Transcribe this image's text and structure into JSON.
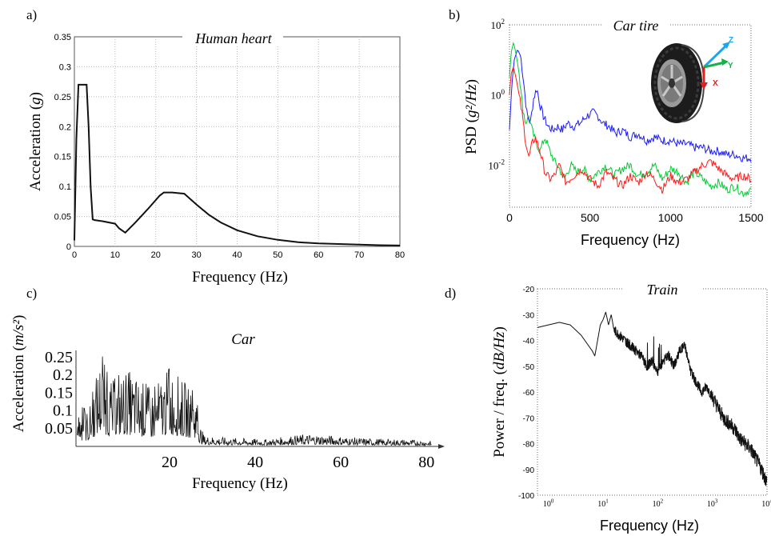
{
  "chart_data": [
    {
      "panel": "a)",
      "type": "line",
      "title": "Human heart",
      "xlabel": "Frequency (Hz)",
      "ylabel_main": "Acceleration (",
      "ylabel_unit": "g",
      "ylabel_end": ")",
      "xlim": [
        0,
        80
      ],
      "ylim": [
        0,
        0.35
      ],
      "xticks": [
        "0",
        "10",
        "20",
        "30",
        "40",
        "50",
        "60",
        "70",
        "80"
      ],
      "yticks": [
        "0",
        "0.05",
        "0.1",
        "0.15",
        "0.2",
        "0.25",
        "0.3",
        "0.35"
      ],
      "grid": true,
      "x": [
        0,
        0.5,
        1,
        1.5,
        2,
        3,
        3.5,
        4,
        4.5,
        5,
        7,
        10,
        11,
        12.5,
        15,
        18,
        21,
        22,
        24,
        27,
        30,
        33,
        36,
        40,
        45,
        50,
        55,
        60,
        65,
        70,
        75,
        80
      ],
      "y": [
        0.01,
        0.18,
        0.27,
        0.27,
        0.27,
        0.27,
        0.2,
        0.1,
        0.045,
        0.044,
        0.042,
        0.038,
        0.03,
        0.023,
        0.04,
        0.062,
        0.085,
        0.09,
        0.09,
        0.088,
        0.07,
        0.053,
        0.04,
        0.027,
        0.017,
        0.011,
        0.007,
        0.005,
        0.004,
        0.003,
        0.002,
        0.0015
      ]
    },
    {
      "panel": "b)",
      "type": "line",
      "title": "Car tire",
      "xlabel": "Frequency (Hz)",
      "ylabel_main": "PSD (",
      "ylabel_unit": "g²/Hz",
      "ylabel_end": ")",
      "xlim": [
        0,
        1500
      ],
      "ylim_log10": [
        -3.2,
        2
      ],
      "xticks": [
        "0",
        "500",
        "1000",
        "1500"
      ],
      "yticks": [
        {
          "base": "10",
          "exp": "2",
          "value": 2
        },
        {
          "base": "10",
          "exp": "0",
          "value": 0
        },
        {
          "base": "10",
          "exp": "-2",
          "value": -2
        }
      ],
      "image_axis_labels": [
        "Z",
        "Y",
        "X"
      ],
      "series": [
        {
          "color": "#1a1aff",
          "x": [
            0,
            15,
            30,
            50,
            70,
            90,
            110,
            130,
            150,
            170,
            190,
            210,
            240,
            270,
            300,
            330,
            360,
            400,
            440,
            480,
            520,
            550,
            580,
            620,
            660,
            700,
            750,
            800,
            850,
            900,
            950,
            1000,
            1050,
            1100,
            1150,
            1200,
            1250,
            1300,
            1350,
            1400,
            1450,
            1500
          ],
          "log10y": [
            -1,
            0.3,
            1,
            1.3,
            1.1,
            0.3,
            -0.6,
            -0.8,
            -0.1,
            0.2,
            -0.3,
            -0.6,
            -0.9,
            -1.0,
            -0.9,
            -1.0,
            -0.8,
            -0.9,
            -0.8,
            -0.6,
            -0.5,
            -0.6,
            -0.8,
            -0.9,
            -1.1,
            -1.0,
            -1.2,
            -1.1,
            -1.3,
            -1.2,
            -1.3,
            -1.3,
            -1.4,
            -1.4,
            -1.5,
            -1.5,
            -1.6,
            -1.6,
            -1.7,
            -1.7,
            -1.8,
            -1.8
          ]
        },
        {
          "color": "#00cc33",
          "x": [
            0,
            10,
            25,
            40,
            60,
            80,
            100,
            120,
            140,
            160,
            190,
            220,
            250,
            280,
            310,
            340,
            380,
            420,
            460,
            500,
            550,
            600,
            650,
            700,
            750,
            800,
            850,
            900,
            950,
            1000,
            1050,
            1100,
            1150,
            1200,
            1250,
            1300,
            1350,
            1400,
            1450,
            1500
          ],
          "log10y": [
            0.5,
            1.2,
            1.5,
            1.2,
            0.6,
            -0.3,
            -0.8,
            -0.6,
            -1.0,
            -1.3,
            -1.6,
            -1.2,
            -1.6,
            -1.9,
            -2.1,
            -2.4,
            -2.0,
            -2.2,
            -2.1,
            -2.4,
            -2.2,
            -2.0,
            -2.3,
            -2.1,
            -2.0,
            -2.3,
            -2.2,
            -2.0,
            -2.4,
            -2.1,
            -2.2,
            -2.5,
            -2.2,
            -2.4,
            -2.6,
            -2.5,
            -2.7,
            -2.6,
            -2.8,
            -2.7
          ]
        },
        {
          "color": "#ff1a1a",
          "x": [
            0,
            10,
            25,
            40,
            60,
            80,
            100,
            120,
            140,
            160,
            190,
            220,
            250,
            280,
            310,
            350,
            400,
            450,
            500,
            550,
            600,
            650,
            700,
            750,
            800,
            850,
            900,
            950,
            1000,
            1050,
            1100,
            1150,
            1200,
            1250,
            1300,
            1350,
            1400,
            1450,
            1500
          ],
          "log10y": [
            0,
            0.6,
            0.8,
            0.5,
            0.0,
            -0.6,
            -1.3,
            -1.8,
            -1.4,
            -1.2,
            -1.6,
            -2.2,
            -2.4,
            -2.3,
            -2.0,
            -2.5,
            -2.3,
            -2.1,
            -2.4,
            -2.6,
            -2.2,
            -2.4,
            -2.6,
            -2.3,
            -2.5,
            -2.2,
            -2.4,
            -2.7,
            -2.3,
            -2.5,
            -2.4,
            -2.2,
            -2.0,
            -1.9,
            -2.1,
            -2.3,
            -2.4,
            -2.3,
            -2.4
          ]
        }
      ]
    },
    {
      "panel": "c)",
      "type": "line",
      "title": "Car",
      "xlabel": "Frequency (Hz)",
      "ylabel_main": "Acceleration (",
      "ylabel_unit": "m/s²",
      "ylabel_end": ")",
      "xlim": [
        0,
        85
      ],
      "ylim": [
        0,
        0.27
      ],
      "xticks": [
        "20",
        "40",
        "60",
        "80"
      ],
      "yticks": [
        "0.05",
        "0.1",
        "0.15",
        "0.2",
        "0.25"
      ],
      "envelope": {
        "x": [
          0,
          3,
          5,
          6,
          8,
          10,
          12,
          14,
          16,
          18,
          20,
          22,
          24,
          26,
          28,
          29,
          30,
          35,
          40,
          45,
          50,
          55,
          60,
          65,
          70,
          75,
          80,
          83
        ],
        "y": [
          0.12,
          0.1,
          0.22,
          0.26,
          0.18,
          0.2,
          0.22,
          0.2,
          0.18,
          0.16,
          0.2,
          0.22,
          0.2,
          0.17,
          0.15,
          0.06,
          0.03,
          0.025,
          0.022,
          0.02,
          0.03,
          0.035,
          0.03,
          0.025,
          0.022,
          0.02,
          0.018,
          0.015
        ]
      }
    },
    {
      "panel": "d)",
      "type": "line",
      "title": "Train",
      "xlabel": "Frequency (Hz)",
      "ylabel_main": "Power / freq. (",
      "ylabel_unit": "dB/Hz",
      "ylabel_end": ")",
      "xlim_log10": [
        -0.2,
        4
      ],
      "ylim": [
        -100,
        -20
      ],
      "xticks": [
        {
          "base": "10",
          "exp": "0",
          "value": 0
        },
        {
          "base": "10",
          "exp": "1",
          "value": 1
        },
        {
          "base": "10",
          "exp": "2",
          "value": 2
        },
        {
          "base": "10",
          "exp": "3",
          "value": 3
        },
        {
          "base": "10",
          "exp": "4",
          "value": 4
        }
      ],
      "yticks": [
        "-20",
        "-30",
        "-40",
        "-50",
        "-60",
        "-70",
        "-80",
        "-90",
        "-100"
      ],
      "x_log10": [
        -0.2,
        0,
        0.2,
        0.4,
        0.6,
        0.7,
        0.8,
        0.85,
        0.9,
        0.95,
        1.0,
        1.05,
        1.1,
        1.15,
        1.2,
        1.3,
        1.4,
        1.5,
        1.6,
        1.7,
        1.8,
        1.9,
        2.0,
        2.1,
        2.2,
        2.3,
        2.4,
        2.5,
        2.6,
        2.7,
        2.8,
        2.9,
        3.0,
        3.1,
        3.2,
        3.3,
        3.4,
        3.5,
        3.6,
        3.7,
        3.8,
        3.9,
        4.0
      ],
      "y": [
        -35,
        -34,
        -33,
        -34,
        -38,
        -41,
        -44,
        -46,
        -40,
        -34,
        -32,
        -29,
        -34,
        -30,
        -36,
        -38,
        -40,
        -42,
        -44,
        -46,
        -50,
        -48,
        -52,
        -48,
        -46,
        -50,
        -44,
        -42,
        -52,
        -56,
        -60,
        -58,
        -62,
        -66,
        -70,
        -72,
        -74,
        -78,
        -80,
        -82,
        -86,
        -90,
        -95
      ]
    }
  ]
}
